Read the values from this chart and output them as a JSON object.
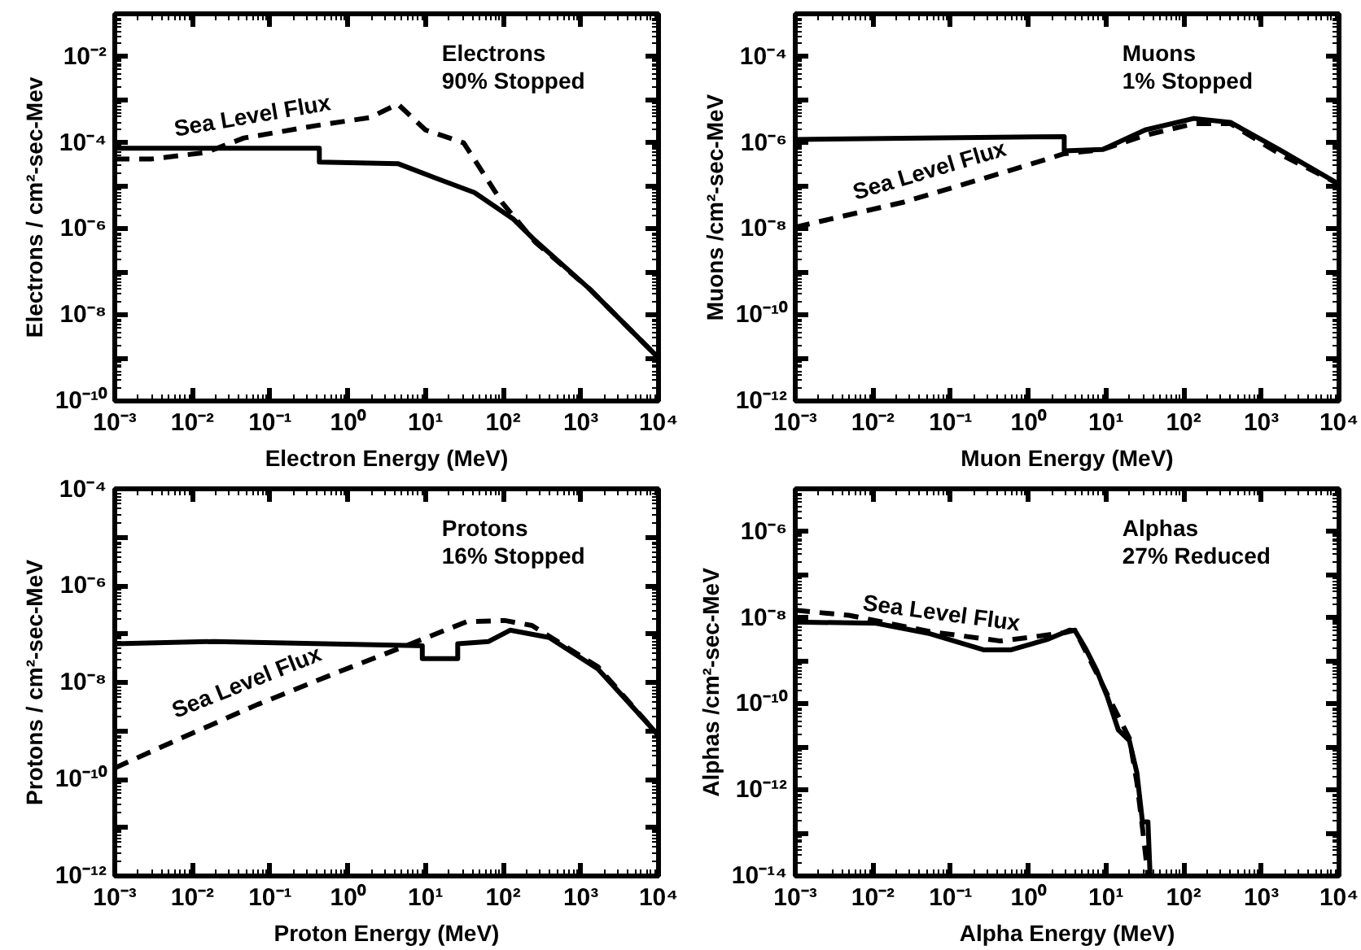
{
  "chart_data": [
    {
      "type": "line",
      "xlabel": "Electron Energy (MeV)",
      "ylabel": "Electrons / cm²-sec-Mev",
      "annotations": [
        "Electrons",
        "90% Stopped"
      ],
      "log": "xy",
      "xlim": [
        0.001,
        10000
      ],
      "xticks": [
        {
          "value": 0.001,
          "label": "10⁻³"
        },
        {
          "value": 0.01,
          "label": "10⁻²"
        },
        {
          "value": 0.1,
          "label": "10⁻¹"
        },
        {
          "value": 1,
          "label": "10⁰"
        },
        {
          "value": 10,
          "label": "10¹"
        },
        {
          "value": 100,
          "label": "10²"
        },
        {
          "value": 1000,
          "label": "10³"
        },
        {
          "value": 10000,
          "label": "10⁴"
        }
      ],
      "ylim": [
        1e-10,
        0.1
      ],
      "yticks": [
        {
          "value": 1e-10,
          "label": "10⁻¹⁰"
        },
        {
          "value": 1e-09,
          "label": null
        },
        {
          "value": 1e-08,
          "label": "10⁻⁸"
        },
        {
          "value": 1e-07,
          "label": null
        },
        {
          "value": 1e-06,
          "label": "10⁻⁶"
        },
        {
          "value": 1e-05,
          "label": null
        },
        {
          "value": 0.0001,
          "label": "10⁻⁴"
        },
        {
          "value": 0.001,
          "label": null
        },
        {
          "value": 0.01,
          "label": "10⁻²"
        }
      ],
      "series": [
        {
          "color": "#000000",
          "line_style": "solid",
          "x": [
            0.001,
            0.43,
            0.43,
            4.4,
            13.8,
            42.7,
            135,
            257,
            1300,
            10000
          ],
          "values": [
            7.5e-05,
            7.5e-05,
            3.6e-05,
            3.3e-05,
            1.5e-05,
            7e-06,
            1.7e-06,
            5.4e-07,
            4e-08,
            1e-09
          ]
        },
        {
          "name": "Sea Level Flux",
          "color": "#000000",
          "line_style": "dashed",
          "x": [
            0.001,
            0.0029,
            0.015,
            0.046,
            0.38,
            1.95,
            4.4,
            10,
            31,
            98,
            257,
            1300,
            10000
          ],
          "values": [
            4.2e-05,
            4.2e-05,
            6e-05,
            0.00013,
            0.00025,
            0.00039,
            0.0008,
            0.0002,
            0.0001,
            4e-06,
            5e-07,
            4e-08,
            1e-09
          ]
        }
      ]
    },
    {
      "type": "line",
      "xlabel": "Muon Energy (MeV)",
      "ylabel": "Muons /cm²-sec-MeV",
      "annotations": [
        "Muons",
        "1% Stopped"
      ],
      "log": "xy",
      "xlim": [
        0.001,
        10000
      ],
      "xticks": [
        {
          "value": 0.001,
          "label": "10⁻³"
        },
        {
          "value": 0.01,
          "label": "10⁻²"
        },
        {
          "value": 0.1,
          "label": "10⁻¹"
        },
        {
          "value": 1,
          "label": "10⁰"
        },
        {
          "value": 10,
          "label": "10¹"
        },
        {
          "value": 100,
          "label": "10²"
        },
        {
          "value": 1000,
          "label": "10³"
        },
        {
          "value": 10000,
          "label": "10⁴"
        }
      ],
      "ylim": [
        1e-12,
        0.001
      ],
      "yticks": [
        {
          "value": 1e-12,
          "label": "10⁻¹²"
        },
        {
          "value": 1e-11,
          "label": null
        },
        {
          "value": 1e-10,
          "label": "10⁻¹⁰"
        },
        {
          "value": 1e-09,
          "label": null
        },
        {
          "value": 1e-08,
          "label": "10⁻⁸"
        },
        {
          "value": 1e-07,
          "label": null
        },
        {
          "value": 1e-06,
          "label": "10⁻⁶"
        },
        {
          "value": 1e-05,
          "label": null
        },
        {
          "value": 0.0001,
          "label": "10⁻⁴"
        }
      ],
      "series": [
        {
          "color": "#000000",
          "line_style": "solid",
          "x": [
            0.001,
            2.9,
            2.9,
            9,
            32,
            135,
            400,
            1700,
            10000
          ],
          "values": [
            1.2e-06,
            1.4e-06,
            6.5e-07,
            7e-07,
            2e-06,
            3.7e-06,
            3e-06,
            7e-07,
            1.1e-07
          ]
        },
        {
          "name": "Sea Level Flux",
          "color": "#000000",
          "line_style": "dashed",
          "x": [
            0.001,
            0.025,
            0.59,
            2.9,
            9,
            32,
            135,
            400,
            1700,
            10000
          ],
          "values": [
            1.1e-08,
            4.2e-08,
            2.3e-07,
            5.6e-07,
            7e-07,
            1.5e-06,
            2.8e-06,
            2.8e-06,
            5.6e-07,
            1.1e-07
          ]
        }
      ]
    },
    {
      "type": "line",
      "xlabel": "Proton Energy (MeV)",
      "ylabel": "Protons / cm²-sec-MeV",
      "annotations": [
        "Protons",
        "16% Stopped"
      ],
      "log": "xy",
      "xlim": [
        0.001,
        10000
      ],
      "xticks": [
        {
          "value": 0.001,
          "label": "10⁻³"
        },
        {
          "value": 0.01,
          "label": "10⁻²"
        },
        {
          "value": 0.1,
          "label": "10⁻¹"
        },
        {
          "value": 1,
          "label": "10⁰"
        },
        {
          "value": 10,
          "label": "10¹"
        },
        {
          "value": 100,
          "label": "10²"
        },
        {
          "value": 1000,
          "label": "10³"
        },
        {
          "value": 10000,
          "label": "10⁴"
        }
      ],
      "ylim": [
        1e-12,
        0.0001
      ],
      "yticks": [
        {
          "value": 1e-12,
          "label": "10⁻¹²"
        },
        {
          "value": 1e-11,
          "label": null
        },
        {
          "value": 1e-10,
          "label": "10⁻¹⁰"
        },
        {
          "value": 1e-09,
          "label": null
        },
        {
          "value": 1e-08,
          "label": "10⁻⁸"
        },
        {
          "value": 1e-07,
          "label": null
        },
        {
          "value": 1e-06,
          "label": "10⁻⁶"
        },
        {
          "value": 1e-05,
          "label": null
        },
        {
          "value": 0.0001,
          "label": "10⁻⁴"
        }
      ],
      "series": [
        {
          "color": "#000000",
          "line_style": "solid",
          "x": [
            0.001,
            0.019,
            9.1,
            9.1,
            26,
            26,
            65,
            123,
            390,
            1660,
            10000
          ],
          "values": [
            6.3e-08,
            7e-08,
            5.7e-08,
            3.1e-08,
            3.1e-08,
            6.3e-08,
            7e-08,
            1.2e-07,
            8.5e-08,
            1.9e-08,
            8e-10
          ]
        },
        {
          "name": "Sea Level Flux",
          "color": "#000000",
          "line_style": "dashed",
          "x": [
            0.001,
            0.0044,
            0.069,
            0.8,
            5.6,
            34,
            105,
            235,
            1660,
            10000
          ],
          "values": [
            1.7e-10,
            5e-10,
            3.5e-09,
            1.7e-08,
            5.7e-08,
            1.8e-07,
            1.9e-07,
            1.5e-07,
            2.1e-08,
            8e-10
          ]
        }
      ]
    },
    {
      "type": "line",
      "xlabel": "Alpha Energy (MeV)",
      "ylabel": "Alphas /cm²-sec-MeV",
      "annotations": [
        "Alphas",
        "27% Reduced"
      ],
      "log": "xy",
      "xlim": [
        0.001,
        10000
      ],
      "xticks": [
        {
          "value": 0.001,
          "label": "10⁻³"
        },
        {
          "value": 0.01,
          "label": "10⁻²"
        },
        {
          "value": 0.1,
          "label": "10⁻¹"
        },
        {
          "value": 1,
          "label": "10⁰"
        },
        {
          "value": 10,
          "label": "10¹"
        },
        {
          "value": 100,
          "label": "10²"
        },
        {
          "value": 1000,
          "label": "10³"
        },
        {
          "value": 10000,
          "label": "10⁴"
        }
      ],
      "ylim": [
        1e-14,
        1e-05
      ],
      "yticks": [
        {
          "value": 1e-14,
          "label": "10⁻¹⁴"
        },
        {
          "value": 1e-13,
          "label": null
        },
        {
          "value": 1e-12,
          "label": "10⁻¹²"
        },
        {
          "value": 1e-11,
          "label": null
        },
        {
          "value": 1e-10,
          "label": "10⁻¹⁰"
        },
        {
          "value": 1e-09,
          "label": null
        },
        {
          "value": 1e-08,
          "label": "10⁻⁸"
        },
        {
          "value": 1e-07,
          "label": null
        },
        {
          "value": 1e-06,
          "label": "10⁻⁶"
        }
      ],
      "series": [
        {
          "color": "#000000",
          "line_style": "solid",
          "x": [
            0.001,
            0.011,
            0.054,
            0.27,
            0.59,
            1.8,
            3.4,
            4,
            5.5,
            7.6,
            10.5,
            14.4,
            20,
            25,
            29.5,
            34.7,
            37
          ],
          "values": [
            8e-09,
            7.5e-09,
            4.3e-09,
            1.8e-09,
            1.8e-09,
            3.2e-09,
            5.2e-09,
            5e-09,
            1.9e-09,
            6e-10,
            1.4e-10,
            2.5e-11,
            1.4e-11,
            2.5e-12,
            1.8e-13,
            1.8e-13,
            1e-14
          ]
        },
        {
          "name": "Sea Level Flux",
          "color": "#000000",
          "line_style": "dashed",
          "x": [
            0.001,
            0.0049,
            0.054,
            0.44,
            2.9,
            4,
            10.5,
            20,
            25,
            29.5,
            34.7
          ],
          "values": [
            1.5e-08,
            1.15e-08,
            4.8e-09,
            2.9e-09,
            4.5e-09,
            5.2e-09,
            1.6e-10,
            1.6e-11,
            1.5e-12,
            1.3e-13,
            1e-14
          ]
        }
      ]
    }
  ]
}
